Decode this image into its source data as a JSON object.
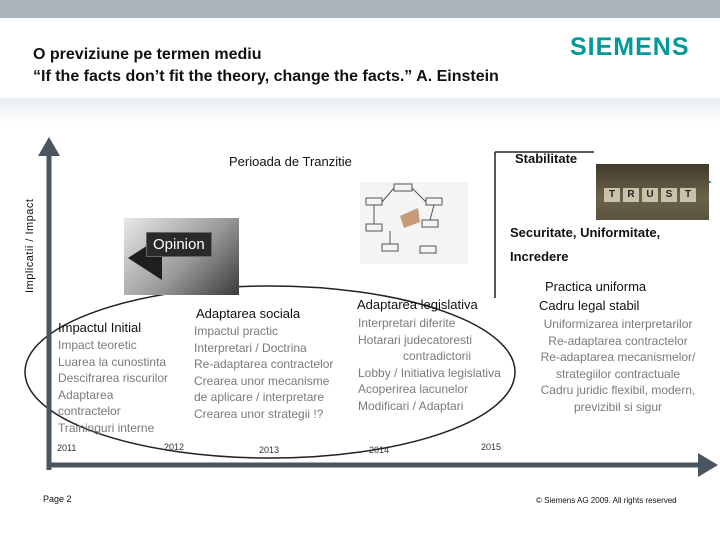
{
  "header": {
    "title_line1": "O previziune pe termen mediu",
    "title_line2": "“If the facts don’t fit the theory, change the facts.” A. Einstein",
    "logo": "SIEMENS"
  },
  "axis": {
    "ylabel": "Implicatii / Impact",
    "years": [
      "2011",
      "2012",
      "2013",
      "2014",
      "2015"
    ]
  },
  "phases": {
    "transition": "Perioada de Tranzitie",
    "stability": "Stabilitate",
    "security": "Securitate, Uniformitate,",
    "trust": "Incredere"
  },
  "columns": [
    {
      "heading": "Impactul Initial",
      "items": [
        "Impact teoretic",
        "Luarea la cunostinta",
        "Descifrarea riscurilor",
        "Adaptarea",
        "contractelor",
        "Traininguri interne"
      ]
    },
    {
      "heading": "Adaptarea sociala",
      "items": [
        "Impactul practic",
        "Interpretari / Doctrina",
        "Re-adaptarea contractelor",
        "Crearea unor mecanisme",
        "de aplicare / interpretare",
        "Crearea unor strategii !?"
      ]
    },
    {
      "heading": "Adaptarea legislativa",
      "items": [
        "Interpretari diferite",
        "Hotarari judecatoresti",
        "contradictorii",
        "Lobby / Initiativa legislativa",
        "Acoperirea lacunelor",
        "Modificari / Adaptari"
      ]
    },
    {
      "heading_line1": "Practica uniforma",
      "heading_line2": "Cadru legal stabil",
      "items": [
        "Uniformizarea interpretarilor",
        "Re-adaptarea contractelor",
        "Re-adaptarea mecanismelor/",
        "strategiilor contractuale",
        "Cadru juridic flexibil, modern,",
        "previzibil si sigur"
      ]
    }
  ],
  "images": {
    "opinion": "Opinion",
    "trust_letters": [
      "T",
      "R",
      "U",
      "S",
      "T"
    ]
  },
  "footer": {
    "page": "Page 2",
    "copyright": "© Siemens AG 2009. All rights reserved"
  },
  "colors": {
    "brand": "#009999",
    "arrow": "#4a5560",
    "header_bar": "#a9b4bd",
    "stability_arrow": "#00a3a3"
  },
  "icons": [
    "opinion-megaphone-image",
    "flowchart-hand-image",
    "trust-blocks-image"
  ]
}
